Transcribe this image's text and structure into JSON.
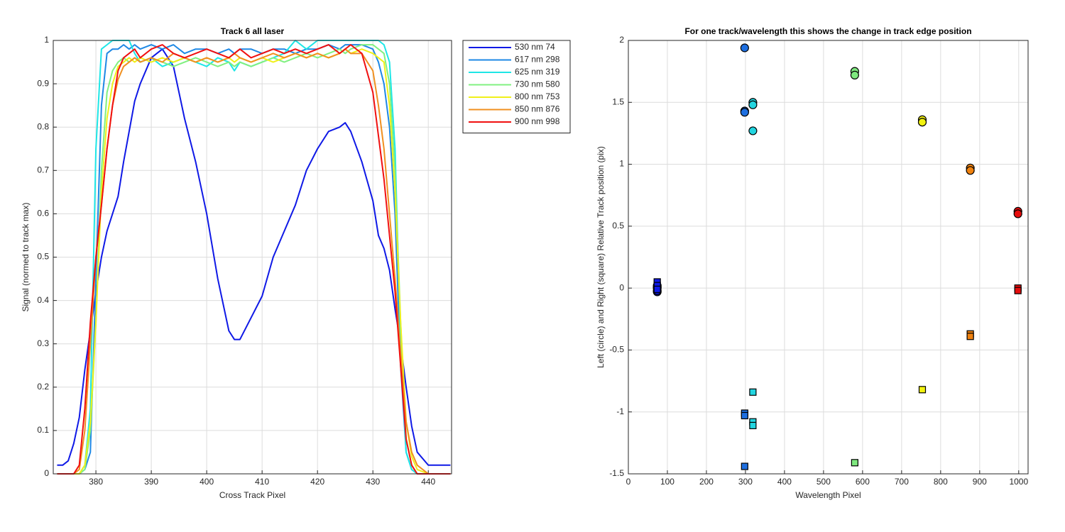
{
  "chart_data": [
    {
      "type": "line",
      "title": "Track 6  all laser",
      "xlabel": "Cross Track Pixel",
      "ylabel": "Signal (normed to track max)",
      "xlim": [
        372.3,
        444.2
      ],
      "xticks": [
        380,
        390,
        400,
        410,
        420,
        430,
        440
      ],
      "ylim": [
        0,
        1
      ],
      "yticks": [
        0,
        0.1,
        0.2,
        0.3,
        0.4,
        0.5,
        0.6,
        0.7,
        0.8,
        0.9,
        1
      ],
      "grid": true,
      "legend": "outside-right",
      "x": [
        373,
        374,
        375,
        376,
        377,
        378,
        379,
        380,
        381,
        382,
        383,
        384,
        385,
        386,
        387,
        388,
        390,
        392,
        394,
        396,
        398,
        400,
        402,
        404,
        405,
        406,
        408,
        410,
        412,
        414,
        416,
        418,
        420,
        422,
        424,
        425,
        426,
        428,
        430,
        431,
        432,
        433,
        434,
        435,
        436,
        437,
        438,
        440,
        442,
        444
      ],
      "series": [
        {
          "name": "530 nm 74",
          "color": "#0f19e6",
          "values": [
            0.02,
            0.02,
            0.03,
            0.07,
            0.13,
            0.24,
            0.33,
            0.42,
            0.5,
            0.56,
            0.6,
            0.64,
            0.72,
            0.79,
            0.86,
            0.9,
            0.96,
            0.98,
            0.94,
            0.82,
            0.72,
            0.6,
            0.45,
            0.33,
            0.31,
            0.31,
            0.36,
            0.41,
            0.5,
            0.56,
            0.62,
            0.7,
            0.75,
            0.79,
            0.8,
            0.81,
            0.79,
            0.72,
            0.63,
            0.55,
            0.52,
            0.47,
            0.38,
            0.3,
            0.2,
            0.11,
            0.05,
            0.02,
            0.02,
            0.02
          ]
        },
        {
          "name": "617 nm 298",
          "color": "#1e88e5",
          "values": [
            0,
            0,
            0,
            0,
            0,
            0.01,
            0.05,
            0.45,
            0.85,
            0.97,
            0.98,
            0.98,
            0.99,
            0.98,
            0.99,
            0.98,
            0.99,
            0.98,
            0.99,
            0.97,
            0.98,
            0.98,
            0.97,
            0.98,
            0.97,
            0.98,
            0.98,
            0.97,
            0.98,
            0.98,
            0.97,
            0.98,
            0.98,
            0.99,
            0.98,
            0.99,
            0.99,
            0.99,
            0.98,
            0.95,
            0.9,
            0.8,
            0.6,
            0.25,
            0.05,
            0.01,
            0,
            0,
            0,
            0
          ]
        },
        {
          "name": "625 nm 319",
          "color": "#1ee6e6",
          "values": [
            0,
            0,
            0,
            0,
            0,
            0.02,
            0.15,
            0.75,
            0.98,
            0.99,
            1,
            1,
            1,
            1,
            0.97,
            0.95,
            0.96,
            0.94,
            0.95,
            0.96,
            0.95,
            0.94,
            0.96,
            0.95,
            0.93,
            0.95,
            0.94,
            0.95,
            0.96,
            0.97,
            1,
            0.98,
            1,
            1,
            1,
            1,
            1,
            1,
            1,
            1,
            0.99,
            0.95,
            0.75,
            0.3,
            0.05,
            0.01,
            0,
            0,
            0,
            0
          ]
        },
        {
          "name": "730 nm 580",
          "color": "#80f080",
          "values": [
            0,
            0,
            0,
            0,
            0,
            0.01,
            0.1,
            0.35,
            0.7,
            0.88,
            0.93,
            0.95,
            0.96,
            0.95,
            0.96,
            0.95,
            0.96,
            0.95,
            0.94,
            0.95,
            0.96,
            0.95,
            0.94,
            0.95,
            0.94,
            0.95,
            0.94,
            0.95,
            0.96,
            0.95,
            0.96,
            0.97,
            0.96,
            0.97,
            0.98,
            0.97,
            0.98,
            0.99,
            0.99,
            0.98,
            0.97,
            0.9,
            0.7,
            0.35,
            0.08,
            0.02,
            0,
            0,
            0,
            0
          ]
        },
        {
          "name": "800 nm 753",
          "color": "#f0f01a",
          "values": [
            0,
            0,
            0,
            0,
            0,
            0.02,
            0.12,
            0.35,
            0.65,
            0.82,
            0.9,
            0.94,
            0.95,
            0.96,
            0.95,
            0.96,
            0.95,
            0.96,
            0.95,
            0.96,
            0.95,
            0.96,
            0.95,
            0.96,
            0.95,
            0.96,
            0.95,
            0.96,
            0.95,
            0.96,
            0.97,
            0.96,
            0.97,
            0.96,
            0.97,
            0.98,
            0.97,
            0.98,
            0.97,
            0.96,
            0.95,
            0.85,
            0.65,
            0.35,
            0.12,
            0.04,
            0.01,
            0,
            0,
            0
          ]
        },
        {
          "name": "850 nm 876",
          "color": "#f09020",
          "values": [
            0,
            0,
            0,
            0,
            0.01,
            0.1,
            0.3,
            0.5,
            0.62,
            0.75,
            0.85,
            0.91,
            0.94,
            0.95,
            0.96,
            0.95,
            0.96,
            0.95,
            0.97,
            0.96,
            0.95,
            0.96,
            0.95,
            0.96,
            0.97,
            0.96,
            0.95,
            0.96,
            0.97,
            0.96,
            0.97,
            0.96,
            0.97,
            0.96,
            0.97,
            0.98,
            0.97,
            0.97,
            0.93,
            0.85,
            0.75,
            0.6,
            0.45,
            0.28,
            0.12,
            0.05,
            0.02,
            0,
            0,
            0
          ]
        },
        {
          "name": "900 nm 998",
          "color": "#f01010",
          "values": [
            0,
            0,
            0,
            0,
            0.02,
            0.15,
            0.35,
            0.5,
            0.62,
            0.75,
            0.85,
            0.93,
            0.96,
            0.97,
            0.98,
            0.96,
            0.98,
            0.99,
            0.97,
            0.96,
            0.97,
            0.98,
            0.97,
            0.96,
            0.97,
            0.98,
            0.96,
            0.97,
            0.98,
            0.97,
            0.98,
            0.97,
            0.98,
            0.99,
            0.97,
            0.98,
            0.99,
            0.97,
            0.88,
            0.78,
            0.68,
            0.55,
            0.42,
            0.25,
            0.08,
            0.02,
            0,
            0,
            0,
            0
          ]
        }
      ]
    },
    {
      "type": "scatter",
      "title": "For one track/wavelength this shows the change in track edge position",
      "xlabel": "Wavelength Pixel",
      "ylabel": "Left (circle) and Right (square) Relative Track position (pix)",
      "xlim": [
        0,
        1024
      ],
      "xticks": [
        0,
        100,
        200,
        300,
        400,
        500,
        600,
        700,
        800,
        900,
        1000
      ],
      "ylim": [
        -1.5,
        2
      ],
      "yticks": [
        -1.5,
        -1,
        -0.5,
        0,
        0.5,
        1,
        1.5,
        2
      ],
      "grid": true,
      "series": [
        {
          "marker": "circle",
          "color": "#0f19e6",
          "x": [
            74,
            74,
            74,
            74,
            74
          ],
          "y": [
            0,
            -0.03,
            0.02,
            0.01,
            -0.02
          ]
        },
        {
          "marker": "square",
          "color": "#0f19e6",
          "x": [
            74,
            74,
            74
          ],
          "y": [
            0.05,
            0.02,
            -0.01
          ]
        },
        {
          "marker": "circle",
          "color": "#1e6fe0",
          "x": [
            298,
            298,
            298
          ],
          "y": [
            1.94,
            1.43,
            1.42
          ]
        },
        {
          "marker": "square",
          "color": "#1e6fe0",
          "x": [
            298,
            298,
            298
          ],
          "y": [
            -1.01,
            -1.03,
            -1.44
          ]
        },
        {
          "marker": "circle",
          "color": "#22d5e0",
          "x": [
            319,
            319,
            319
          ],
          "y": [
            1.5,
            1.48,
            1.27
          ]
        },
        {
          "marker": "square",
          "color": "#22d5e0",
          "x": [
            319,
            319,
            319
          ],
          "y": [
            -0.84,
            -1.08,
            -1.11
          ]
        },
        {
          "marker": "circle",
          "color": "#7fe87f",
          "x": [
            580,
            580
          ],
          "y": [
            1.75,
            1.72
          ]
        },
        {
          "marker": "square",
          "color": "#7fe87f",
          "x": [
            580
          ],
          "y": [
            -1.41
          ]
        },
        {
          "marker": "circle",
          "color": "#f2f20f",
          "x": [
            753,
            753
          ],
          "y": [
            1.36,
            1.34
          ]
        },
        {
          "marker": "square",
          "color": "#f2f20f",
          "x": [
            753
          ],
          "y": [
            -0.82
          ]
        },
        {
          "marker": "circle",
          "color": "#f0820f",
          "x": [
            876,
            876
          ],
          "y": [
            0.97,
            0.95
          ]
        },
        {
          "marker": "square",
          "color": "#f0820f",
          "x": [
            876,
            876
          ],
          "y": [
            -0.37,
            -0.39
          ]
        },
        {
          "marker": "circle",
          "color": "#e60d0d",
          "x": [
            998,
            998
          ],
          "y": [
            0.62,
            0.6
          ]
        },
        {
          "marker": "square",
          "color": "#e60d0d",
          "x": [
            998,
            998
          ],
          "y": [
            0,
            -0.02
          ]
        }
      ]
    }
  ]
}
